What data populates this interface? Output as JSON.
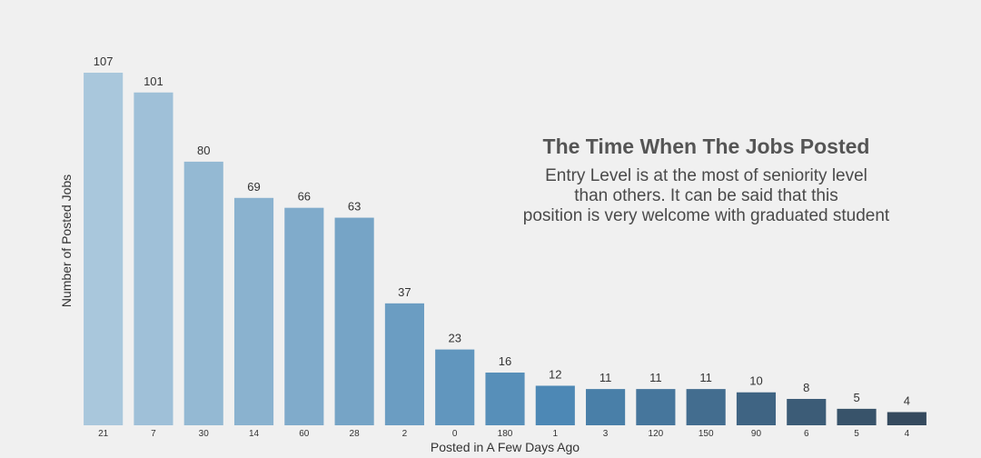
{
  "chart_data": {
    "type": "bar",
    "xlabel": "Posted in A Few Days Ago",
    "ylabel": "Number of Posted Jobs",
    "categories": [
      "21",
      "7",
      "30",
      "14",
      "60",
      "28",
      "2",
      "0",
      "180",
      "1",
      "3",
      "120",
      "150",
      "90",
      "6",
      "5",
      "4"
    ],
    "values": [
      107,
      101,
      80,
      69,
      66,
      63,
      37,
      23,
      16,
      12,
      11,
      11,
      11,
      10,
      8,
      5,
      4
    ],
    "ylim": [
      0,
      107
    ],
    "grid": false,
    "legend": "none",
    "palette": {
      "start": "#a9c7dc",
      "middle": "#4d88b5",
      "end": "#354a5e"
    },
    "annotation": {
      "title": "The Time When The Jobs Posted",
      "lines": [
        "Entry Level is at the most of seniority level",
        "than others. It can be said that this",
        "position is very welcome with graduated student"
      ]
    }
  }
}
